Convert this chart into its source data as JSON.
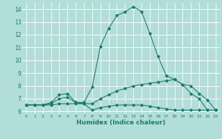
{
  "xlabel": "Humidex (Indice chaleur)",
  "bg_color": "#b2deda",
  "grid_color": "#ffffff",
  "line_color": "#1a7a6e",
  "xlim": [
    -0.5,
    23.5
  ],
  "ylim": [
    5.8,
    14.5
  ],
  "yticks": [
    6,
    7,
    8,
    9,
    10,
    11,
    12,
    13,
    14
  ],
  "xticks": [
    0,
    1,
    2,
    3,
    4,
    5,
    6,
    7,
    8,
    9,
    10,
    11,
    12,
    13,
    14,
    15,
    16,
    17,
    18,
    19,
    20,
    21,
    22,
    23
  ],
  "series": {
    "max": [
      6.5,
      6.5,
      6.5,
      6.7,
      7.3,
      7.4,
      6.7,
      6.7,
      7.9,
      11.1,
      12.5,
      13.5,
      13.8,
      14.2,
      13.8,
      12.1,
      10.3,
      8.8,
      8.5,
      8.1,
      7.4,
      7.0,
      6.1,
      6.1
    ],
    "mean": [
      6.5,
      6.5,
      6.5,
      6.6,
      7.0,
      7.1,
      6.7,
      6.6,
      6.6,
      7.0,
      7.3,
      7.6,
      7.8,
      8.0,
      8.1,
      8.2,
      8.3,
      8.4,
      8.5,
      8.1,
      8.0,
      7.4,
      6.9,
      6.1
    ],
    "min": [
      6.5,
      6.5,
      6.5,
      6.5,
      6.6,
      6.6,
      6.6,
      6.6,
      6.1,
      6.3,
      6.4,
      6.5,
      6.5,
      6.5,
      6.5,
      6.4,
      6.3,
      6.2,
      6.1,
      6.1,
      6.1,
      6.1,
      6.1,
      6.1
    ]
  }
}
